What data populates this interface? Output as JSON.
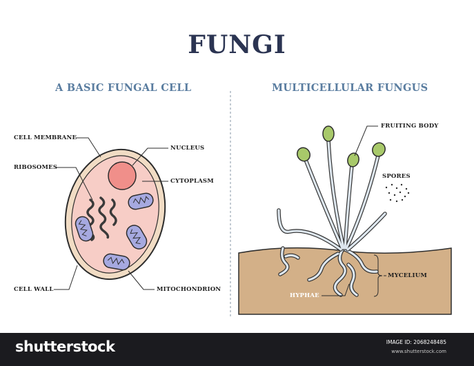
{
  "title": "FUNGI",
  "left_section": {
    "heading": "A BASIC FUNGAL CELL",
    "labels": {
      "cell_membrane": "CELL MEMBRANE",
      "ribosomes": "RIBOSOMES",
      "cell_wall": "CELL WALL",
      "nucleus": "NUCLEUS",
      "cytoplasm": "CYTOPLASM",
      "mitochondrion": "MITOCHONDRION"
    }
  },
  "right_section": {
    "heading": "MULTICELLULAR FUNGUS",
    "labels": {
      "fruiting_body": "FRUITING BODY",
      "spores": "SPORES",
      "mycelium": "MYCELIUM",
      "hyphae": "HYPHAE"
    }
  },
  "footer": {
    "brand": "shutterstock",
    "image_id": "IMAGE ID: 2068248485",
    "url": "www.shutterstock.com"
  },
  "colors": {
    "title": "#2b3452",
    "heading": "#5a7da0",
    "cell_wall": "#f1dcc4",
    "cytoplasm": "#f7cdc6",
    "nucleus": "#f08f8a",
    "mitochondrion": "#a6a9e0",
    "soil": "#d3b088",
    "spore_cap": "#a8c96a",
    "stalk": "#dde6ee",
    "footer_bg": "#1b1b1f"
  }
}
